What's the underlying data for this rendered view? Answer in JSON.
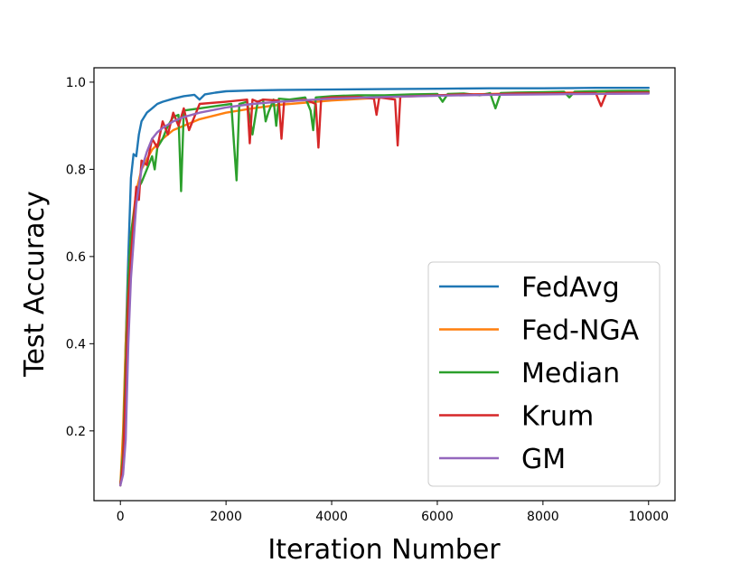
{
  "chart_data": {
    "type": "line",
    "xlabel": "Iteration Number",
    "ylabel": "Test Accuracy",
    "xlim": [
      -500,
      10500
    ],
    "ylim": [
      0.04,
      1.033
    ],
    "xticks": [
      0,
      2000,
      4000,
      6000,
      8000,
      10000
    ],
    "yticks": [
      0.2,
      0.4,
      0.6,
      0.8,
      1.0
    ],
    "xtick_labels": [
      "0",
      "2000",
      "4000",
      "6000",
      "8000",
      "10000"
    ],
    "ytick_labels": [
      "0.2",
      "0.4",
      "0.6",
      "0.8",
      "1.0"
    ],
    "grid": false,
    "legend_position": "lower-right",
    "series": [
      {
        "name": "FedAvg",
        "color": "#1f77b4",
        "x": [
          0,
          50,
          100,
          150,
          200,
          250,
          300,
          350,
          400,
          500,
          600,
          700,
          800,
          1000,
          1200,
          1400,
          1500,
          1600,
          1800,
          2000,
          2500,
          3000,
          4000,
          5000,
          6000,
          7000,
          8000,
          9000,
          10000
        ],
        "y": [
          0.075,
          0.15,
          0.4,
          0.6,
          0.78,
          0.835,
          0.83,
          0.88,
          0.91,
          0.93,
          0.94,
          0.95,
          0.955,
          0.962,
          0.968,
          0.971,
          0.96,
          0.972,
          0.976,
          0.979,
          0.981,
          0.982,
          0.983,
          0.984,
          0.985,
          0.986,
          0.986,
          0.987,
          0.987
        ]
      },
      {
        "name": "Fed-NGA",
        "color": "#ff7f0e",
        "x": [
          0,
          50,
          100,
          150,
          200,
          300,
          400,
          600,
          800,
          1000,
          1500,
          2000,
          2500,
          3000,
          4000,
          5000,
          6000,
          7000,
          8000,
          9000,
          10000
        ],
        "y": [
          0.075,
          0.2,
          0.4,
          0.55,
          0.65,
          0.75,
          0.8,
          0.845,
          0.87,
          0.89,
          0.915,
          0.93,
          0.94,
          0.948,
          0.958,
          0.965,
          0.97,
          0.973,
          0.975,
          0.977,
          0.978
        ]
      },
      {
        "name": "Median",
        "color": "#2ca02c",
        "x": [
          0,
          50,
          100,
          150,
          200,
          300,
          350,
          400,
          500,
          600,
          650,
          700,
          800,
          900,
          1000,
          1100,
          1150,
          1200,
          1500,
          1800,
          2100,
          2150,
          2200,
          2250,
          2400,
          2500,
          2600,
          2700,
          2750,
          2800,
          2900,
          2950,
          3000,
          3200,
          3500,
          3600,
          3650,
          3700,
          4000,
          4500,
          5000,
          5500,
          6000,
          6100,
          6200,
          6500,
          6800,
          7000,
          7100,
          7200,
          7500,
          8000,
          8400,
          8500,
          8600,
          9000,
          9500,
          10000
        ],
        "y": [
          0.075,
          0.15,
          0.35,
          0.55,
          0.65,
          0.74,
          0.76,
          0.77,
          0.8,
          0.83,
          0.8,
          0.85,
          0.87,
          0.9,
          0.92,
          0.925,
          0.75,
          0.935,
          0.94,
          0.945,
          0.95,
          0.86,
          0.775,
          0.95,
          0.955,
          0.88,
          0.955,
          0.96,
          0.91,
          0.93,
          0.96,
          0.9,
          0.962,
          0.96,
          0.965,
          0.935,
          0.89,
          0.965,
          0.968,
          0.97,
          0.97,
          0.972,
          0.973,
          0.955,
          0.973,
          0.974,
          0.97,
          0.975,
          0.94,
          0.975,
          0.976,
          0.977,
          0.978,
          0.965,
          0.978,
          0.979,
          0.98,
          0.98
        ]
      },
      {
        "name": "Krum",
        "color": "#d62728",
        "x": [
          0,
          50,
          100,
          150,
          200,
          300,
          350,
          400,
          500,
          600,
          700,
          800,
          900,
          1000,
          1100,
          1200,
          1300,
          1500,
          2000,
          2400,
          2450,
          2500,
          2600,
          2700,
          3000,
          3050,
          3100,
          3500,
          3700,
          3750,
          3800,
          4000,
          4500,
          4800,
          4850,
          4900,
          5200,
          5250,
          5300,
          6000,
          6500,
          7000,
          7500,
          8000,
          8500,
          9000,
          9100,
          9200,
          9500,
          10000
        ],
        "y": [
          0.075,
          0.13,
          0.3,
          0.5,
          0.6,
          0.76,
          0.73,
          0.82,
          0.81,
          0.87,
          0.85,
          0.91,
          0.88,
          0.93,
          0.9,
          0.94,
          0.89,
          0.95,
          0.955,
          0.96,
          0.86,
          0.96,
          0.955,
          0.96,
          0.958,
          0.87,
          0.955,
          0.96,
          0.95,
          0.85,
          0.962,
          0.965,
          0.966,
          0.962,
          0.925,
          0.965,
          0.96,
          0.855,
          0.967,
          0.97,
          0.972,
          0.972,
          0.974,
          0.974,
          0.975,
          0.975,
          0.945,
          0.975,
          0.976,
          0.976
        ]
      },
      {
        "name": "GM",
        "color": "#9467bd",
        "x": [
          0,
          50,
          100,
          150,
          200,
          300,
          400,
          500,
          600,
          700,
          800,
          1000,
          1200,
          1500,
          2000,
          2500,
          3000,
          4000,
          5000,
          6000,
          7000,
          8000,
          9000,
          10000
        ],
        "y": [
          0.075,
          0.1,
          0.18,
          0.4,
          0.55,
          0.72,
          0.8,
          0.84,
          0.87,
          0.885,
          0.895,
          0.91,
          0.92,
          0.93,
          0.942,
          0.95,
          0.955,
          0.962,
          0.966,
          0.969,
          0.971,
          0.972,
          0.973,
          0.974
        ]
      }
    ]
  }
}
